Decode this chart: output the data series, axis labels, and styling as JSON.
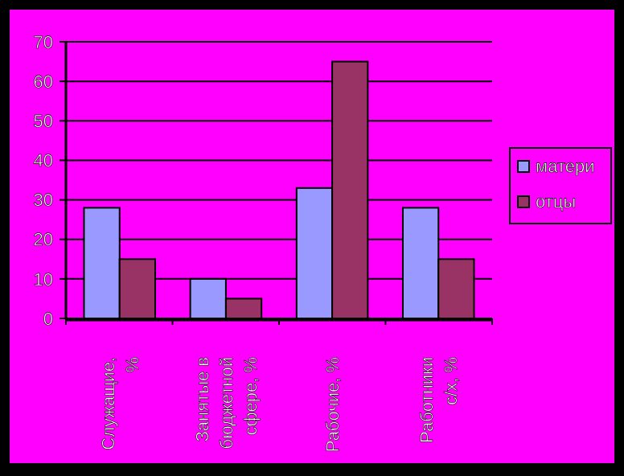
{
  "chart_data": {
    "type": "bar",
    "categories": [
      "Служащие, %",
      "Занятые в бюджетной сфере, %",
      "Рабочие, %",
      "Работники с/х, %"
    ],
    "series": [
      {
        "name": "матери",
        "color": "#9999ff",
        "values": [
          28,
          10,
          33,
          28
        ]
      },
      {
        "name": "отцы",
        "color": "#993366",
        "values": [
          15,
          5,
          65,
          15
        ]
      }
    ],
    "ylim": [
      0,
      70
    ],
    "yticks": [
      0,
      10,
      20,
      30,
      40,
      50,
      60,
      70
    ],
    "grid": "y",
    "legend": "right"
  }
}
